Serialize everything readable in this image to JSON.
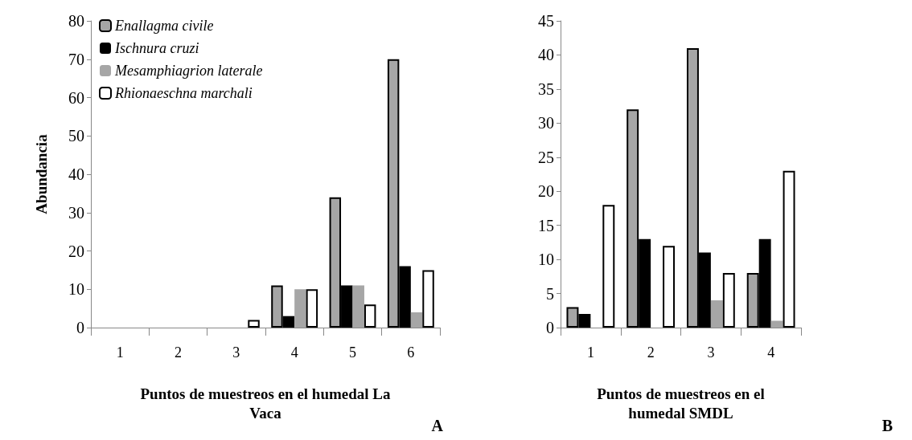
{
  "chart_data": [
    {
      "type": "bar",
      "ylabel": "Abundancia",
      "xlabel": "Puntos de muestreos en el humedal La Vaca",
      "categories": [
        "1",
        "2",
        "3",
        "4",
        "5",
        "6"
      ],
      "ylim": [
        0,
        80
      ],
      "yticks": [
        0,
        10,
        20,
        30,
        40,
        50,
        60,
        70,
        80
      ],
      "grid": false,
      "legend": "top left",
      "annotations": [
        "A"
      ],
      "series": [
        {
          "name": "Enallagma civile",
          "color": "#a6a6a6",
          "values": [
            0,
            0,
            0,
            11,
            34,
            70
          ]
        },
        {
          "name": "Ischnura cruzi",
          "color": "#000000",
          "values": [
            0,
            0,
            0,
            3,
            11,
            16
          ]
        },
        {
          "name": "Mesamphiagrion laterale",
          "color": "#a6a6a6",
          "values": [
            0,
            0,
            0,
            10,
            11,
            4
          ]
        },
        {
          "name": "Rhionaeschna marchali",
          "color": "#ffffff",
          "values": [
            0,
            0,
            2,
            10,
            6,
            15
          ]
        }
      ]
    },
    {
      "type": "bar",
      "xlabel": "Puntos de muestreos en el humedal SMDL",
      "categories": [
        "1",
        "2",
        "3",
        "4"
      ],
      "ylim": [
        0,
        45
      ],
      "yticks": [
        0,
        5,
        10,
        15,
        20,
        25,
        30,
        35,
        40,
        45
      ],
      "grid": false,
      "legend": false,
      "annotations": [
        "B"
      ],
      "series": [
        {
          "color": "#a6a6a6",
          "values": [
            3,
            32,
            41,
            8
          ]
        },
        {
          "color": "#000000",
          "values": [
            2,
            13,
            11,
            13
          ]
        },
        {
          "color": "#a6a6a6",
          "values": [
            0,
            0,
            4,
            1
          ]
        },
        {
          "color": "#ffffff",
          "values": [
            18,
            12,
            8,
            23
          ]
        }
      ]
    }
  ]
}
